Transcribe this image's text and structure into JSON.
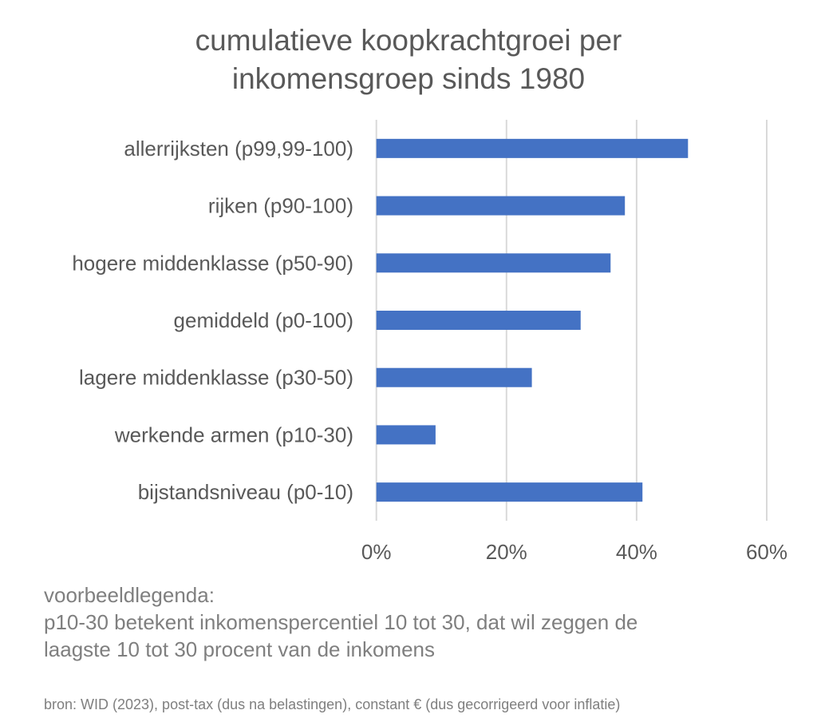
{
  "chart_data": {
    "type": "bar",
    "orientation": "horizontal",
    "title_lines": [
      "cumulatieve koopkrachtgroei per",
      "inkomensgroep sinds 1980"
    ],
    "categories": [
      "allerrijksten (p99,99-100)",
      "rijken (p90-100)",
      "hogere middenklasse (p50-90)",
      "gemiddeld (p0-100)",
      "lagere middenklasse (p30-50)",
      "werkende armen (p10-30)",
      "bijstandsniveau (p0-10)"
    ],
    "values": [
      47.9,
      38.2,
      36.0,
      31.4,
      23.9,
      9.1,
      40.9
    ],
    "xlim": [
      0,
      60
    ],
    "xticks": [
      0,
      20,
      40,
      60
    ],
    "xtick_labels": [
      "0%",
      "20%",
      "40%",
      "60%"
    ],
    "grid": true,
    "bar_color": "#4472C4",
    "xlabel": "",
    "ylabel": ""
  },
  "notes": {
    "legend_lines": [
      "voorbeeldlegenda:",
      "p10-30 betekent inkomenspercentiel 10 tot 30, dat wil zeggen de",
      "laagste 10 tot 30 procent van de inkomens"
    ],
    "source": "bron: WID (2023), post-tax (dus na belastingen), constant € (dus gecorrigeerd voor inflatie)"
  }
}
